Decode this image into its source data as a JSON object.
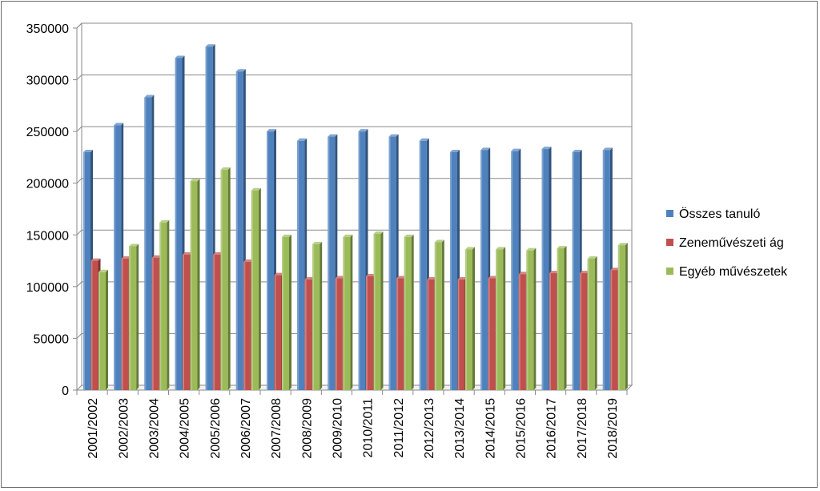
{
  "chart_data": {
    "type": "bar",
    "title": "",
    "xlabel": "",
    "ylabel": "",
    "ylim": [
      0,
      350000
    ],
    "yticks": [
      0,
      50000,
      100000,
      150000,
      200000,
      250000,
      300000,
      350000
    ],
    "grid": true,
    "legend_position": "right",
    "categories": [
      "2001/2002",
      "2002/2003",
      "2003/2004",
      "2004/2005",
      "2005/2006",
      "2006/2007",
      "2007/2008",
      "2008/2009",
      "2009/2010",
      "2010/2011",
      "2011/2012",
      "2012/2013",
      "2013/2014",
      "2014/2015",
      "2015/2016",
      "2016/2017",
      "2017/2018",
      "2018/2019"
    ],
    "series": [
      {
        "name": "Összes tanuló",
        "color": "#4f81bd",
        "values": [
          230000,
          256000,
          283000,
          321000,
          332000,
          308000,
          250000,
          241000,
          245000,
          250000,
          245000,
          241000,
          230000,
          232000,
          231000,
          233000,
          230000,
          232000
        ]
      },
      {
        "name": "Zeneművészeti ág",
        "color": "#c0504d",
        "values": [
          125000,
          127000,
          128000,
          131000,
          131000,
          124000,
          111000,
          107000,
          108000,
          110000,
          108000,
          107000,
          107000,
          108000,
          112000,
          113000,
          113000,
          116000
        ]
      },
      {
        "name": "Egyéb művészetek",
        "color": "#9bbb59",
        "values": [
          114000,
          139000,
          162000,
          202000,
          213000,
          193000,
          148000,
          141000,
          148000,
          151000,
          148000,
          143000,
          136000,
          136000,
          135000,
          137000,
          127000,
          140000
        ]
      }
    ]
  }
}
